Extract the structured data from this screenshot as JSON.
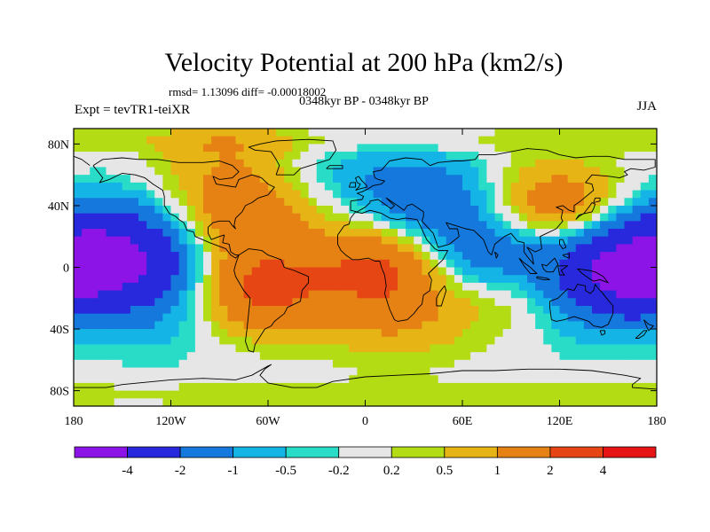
{
  "chart_data": {
    "type": "heatmap",
    "title": "Velocity Potential at 200 hPa (km2/s)",
    "stats_line": "rmsd= 1.13096 diff= -0.00018002",
    "period_line": "0348kyr BP - 0348kyr BP",
    "expt_label": "Expt = tevTR1-teiXR",
    "season": "JJA",
    "x_ticks": [
      {
        "value": -180,
        "label": "180"
      },
      {
        "value": -120,
        "label": "120W"
      },
      {
        "value": -60,
        "label": "60W"
      },
      {
        "value": 0,
        "label": "0"
      },
      {
        "value": 60,
        "label": "60E"
      },
      {
        "value": 120,
        "label": "120E"
      },
      {
        "value": 180,
        "label": "180"
      }
    ],
    "y_ticks": [
      {
        "value": 80,
        "label": "80N"
      },
      {
        "value": 40,
        "label": "40N"
      },
      {
        "value": 0,
        "label": "0"
      },
      {
        "value": -40,
        "label": "40S"
      },
      {
        "value": -80,
        "label": "80S"
      }
    ],
    "xlim": [
      -180,
      180
    ],
    "ylim": [
      -90,
      90
    ],
    "contour_levels": [
      -4,
      -2,
      -1,
      -0.5,
      -0.2,
      0.2,
      0.5,
      1,
      2,
      4
    ],
    "colorbar_labels": [
      "-4",
      "-2",
      "-1",
      "-0.5",
      "-0.2",
      "0.2",
      "0.5",
      "1",
      "2",
      "4"
    ],
    "colorbar_colors": [
      "#8c14e6",
      "#2828dc",
      "#1478dc",
      "#14b4e6",
      "#28dcc8",
      "#e6e6e6",
      "#b4dc14",
      "#e6b414",
      "#e68214",
      "#e64614",
      "#e61414"
    ],
    "field_features": [
      {
        "name": "east-pacific-low",
        "lon": -145,
        "lat": 2,
        "value": -3.2
      },
      {
        "name": "north-pacific-low",
        "lon": -165,
        "lat": 25,
        "value": -1.5
      },
      {
        "name": "east-pacific-south-low",
        "lon": -125,
        "lat": -35,
        "value": -0.6
      },
      {
        "name": "americas-high",
        "lon": -75,
        "lat": 30,
        "value": 1.6
      },
      {
        "name": "south-america-high",
        "lon": -62,
        "lat": -15,
        "value": 2.6
      },
      {
        "name": "north-america-ridge",
        "lon": -85,
        "lat": 70,
        "value": 0.8
      },
      {
        "name": "south-atlantic-low",
        "lon": -35,
        "lat": -8,
        "value": -0.6
      },
      {
        "name": "africa-high",
        "lon": 10,
        "lat": 0,
        "value": 2.4
      },
      {
        "name": "africa-south-high",
        "lon": 20,
        "lat": -35,
        "value": 0.8
      },
      {
        "name": "eurasia-low",
        "lon": 40,
        "lat": 45,
        "value": -1.6
      },
      {
        "name": "indian-ocean-low",
        "lon": 75,
        "lat": 8,
        "value": -2.2
      },
      {
        "name": "north-atlantic-low",
        "lon": -10,
        "lat": 62,
        "value": -0.5
      },
      {
        "name": "east-asia-high",
        "lon": 115,
        "lat": 38,
        "value": 1.9
      },
      {
        "name": "maritime-continent-high",
        "lon": 95,
        "lat": -15,
        "value": 1.2
      },
      {
        "name": "west-pacific-low",
        "lon": 160,
        "lat": -3,
        "value": -4.6
      },
      {
        "name": "southwest-pacific-low",
        "lon": 125,
        "lat": -30,
        "value": -0.6
      },
      {
        "name": "arctic-belt",
        "lon": 20,
        "lat": 82,
        "value": 0.35
      },
      {
        "name": "antarctic-belt",
        "lon": 0,
        "lat": -82,
        "value": 0.35
      }
    ]
  }
}
